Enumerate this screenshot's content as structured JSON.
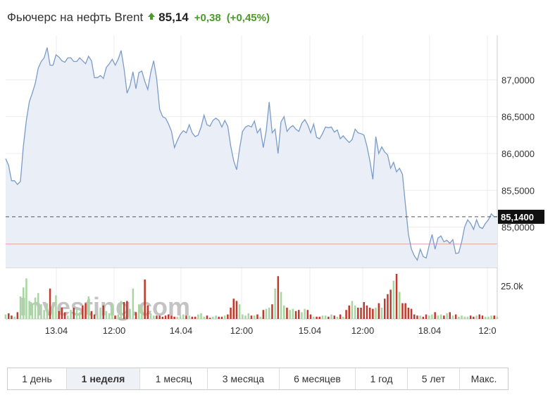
{
  "header": {
    "title": "Фьючерс на нефть Brent",
    "price": "85,14",
    "change": "+0,38",
    "change_pct": "(+0,45%)",
    "arrow_icon": "triangle-up",
    "up_color": "#4c9a2a"
  },
  "watermark": "Investing.com",
  "tabs": [
    {
      "label": "1 день",
      "active": false
    },
    {
      "label": "1 неделя",
      "active": true
    },
    {
      "label": "1 месяц",
      "active": false
    },
    {
      "label": "3 месяца",
      "active": false
    },
    {
      "label": "6 месяцев",
      "active": false
    },
    {
      "label": "1 год",
      "active": false
    },
    {
      "label": "5 лет",
      "active": false
    },
    {
      "label": "Макс.",
      "active": false
    }
  ],
  "chart_data": {
    "type": "area",
    "title": "Фьючерс на нефть Brent",
    "x_ticks": [
      "13.04",
      "12:00",
      "14.04",
      "12:00",
      "15.04",
      "12:00",
      "18.04",
      "12:0"
    ],
    "y_ticks": [
      "87,0000",
      "86,5000",
      "86,0000",
      "85,5000",
      "85,0000"
    ],
    "ylim": [
      84.45,
      87.55
    ],
    "last_value": 85.14,
    "last_label": "85,1400",
    "reference_line": 84.77,
    "grid": true,
    "line_color": "#7b9cc9",
    "fill_color": "#e9eef7",
    "price": [
      85.93,
      85.84,
      85.63,
      85.63,
      85.58,
      85.62,
      86.1,
      86.45,
      86.7,
      86.82,
      86.95,
      87.16,
      87.25,
      87.3,
      87.44,
      87.2,
      87.2,
      87.34,
      87.31,
      87.26,
      87.24,
      87.3,
      87.3,
      87.25,
      87.25,
      87.3,
      87.26,
      87.22,
      87.32,
      87.26,
      87.03,
      87.03,
      87.06,
      87.02,
      87.17,
      87.22,
      87.28,
      87.2,
      87.28,
      87.4,
      87.15,
      86.82,
      86.92,
      87.11,
      86.88,
      87.1,
      87.12,
      86.98,
      86.87,
      87.1,
      87.26,
      87.02,
      86.6,
      86.5,
      86.48,
      86.4,
      86.3,
      86.08,
      86.18,
      86.26,
      86.31,
      86.28,
      86.39,
      86.28,
      86.23,
      86.25,
      86.36,
      86.52,
      86.39,
      86.37,
      86.45,
      86.48,
      86.45,
      86.36,
      86.45,
      86.37,
      86.1,
      85.9,
      85.78,
      86.07,
      86.3,
      86.36,
      86.38,
      86.36,
      86.44,
      86.28,
      86.34,
      86.08,
      86.31,
      86.7,
      86.28,
      86.33,
      86.0,
      86.43,
      86.5,
      86.3,
      86.35,
      86.38,
      86.33,
      86.3,
      86.41,
      86.46,
      86.39,
      86.28,
      86.4,
      86.22,
      86.2,
      86.27,
      86.36,
      86.35,
      86.36,
      86.29,
      86.32,
      86.2,
      86.24,
      86.19,
      86.15,
      86.19,
      86.33,
      86.28,
      86.27,
      86.25,
      86.1,
      85.9,
      85.65,
      86.23,
      86.0,
      86.09,
      86.02,
      85.98,
      85.8,
      85.88,
      85.75,
      85.8,
      85.72,
      85.3,
      84.9,
      84.7,
      84.61,
      84.55,
      84.7,
      84.6,
      84.58,
      84.75,
      84.9,
      84.7,
      84.85,
      84.88,
      84.8,
      84.82,
      84.78,
      84.83,
      84.64,
      84.65,
      84.8,
      85.0,
      85.1,
      85.05,
      84.97,
      85.1,
      85.0,
      84.98,
      85.05,
      85.1,
      85.18,
      85.14,
      85.14
    ],
    "volume_colors": {
      "up": "#a7d6a0",
      "down": "#c0392b"
    },
    "volume_label": "25.0k",
    "volume": [
      4,
      5,
      3,
      2,
      6,
      20,
      28,
      36,
      16,
      14,
      19,
      23,
      13,
      8,
      14,
      27,
      9,
      21,
      7,
      10,
      6,
      3,
      8,
      10,
      8,
      6,
      12,
      14,
      20,
      7,
      4,
      5,
      10,
      12,
      7,
      5,
      14,
      3,
      4,
      16,
      15,
      16,
      9,
      27,
      6,
      13,
      11,
      35,
      12,
      5,
      3,
      3,
      3,
      2,
      3,
      4,
      3,
      2,
      2,
      3,
      4,
      3,
      3,
      2,
      2,
      4,
      5,
      2,
      3,
      1,
      2,
      3,
      2,
      2,
      3,
      4,
      10,
      18,
      16,
      13,
      4,
      3,
      5,
      3,
      3,
      4,
      2,
      8,
      9,
      10,
      13,
      27,
      38,
      24,
      12,
      10,
      8,
      9,
      7,
      8,
      6,
      9,
      8,
      4,
      2,
      2,
      2,
      3,
      3,
      2,
      4,
      3,
      2,
      4,
      2,
      8,
      12,
      16,
      12,
      10,
      10,
      15,
      12,
      10,
      9,
      10,
      14,
      10,
      18,
      22,
      26,
      34,
      40,
      24,
      14,
      14,
      10,
      9,
      4,
      3,
      3,
      2,
      4,
      3,
      4,
      6,
      3,
      4,
      3,
      5,
      6,
      3,
      4,
      2,
      3,
      2,
      2,
      3,
      2,
      3,
      4,
      3,
      2,
      2,
      3,
      3,
      2
    ]
  }
}
